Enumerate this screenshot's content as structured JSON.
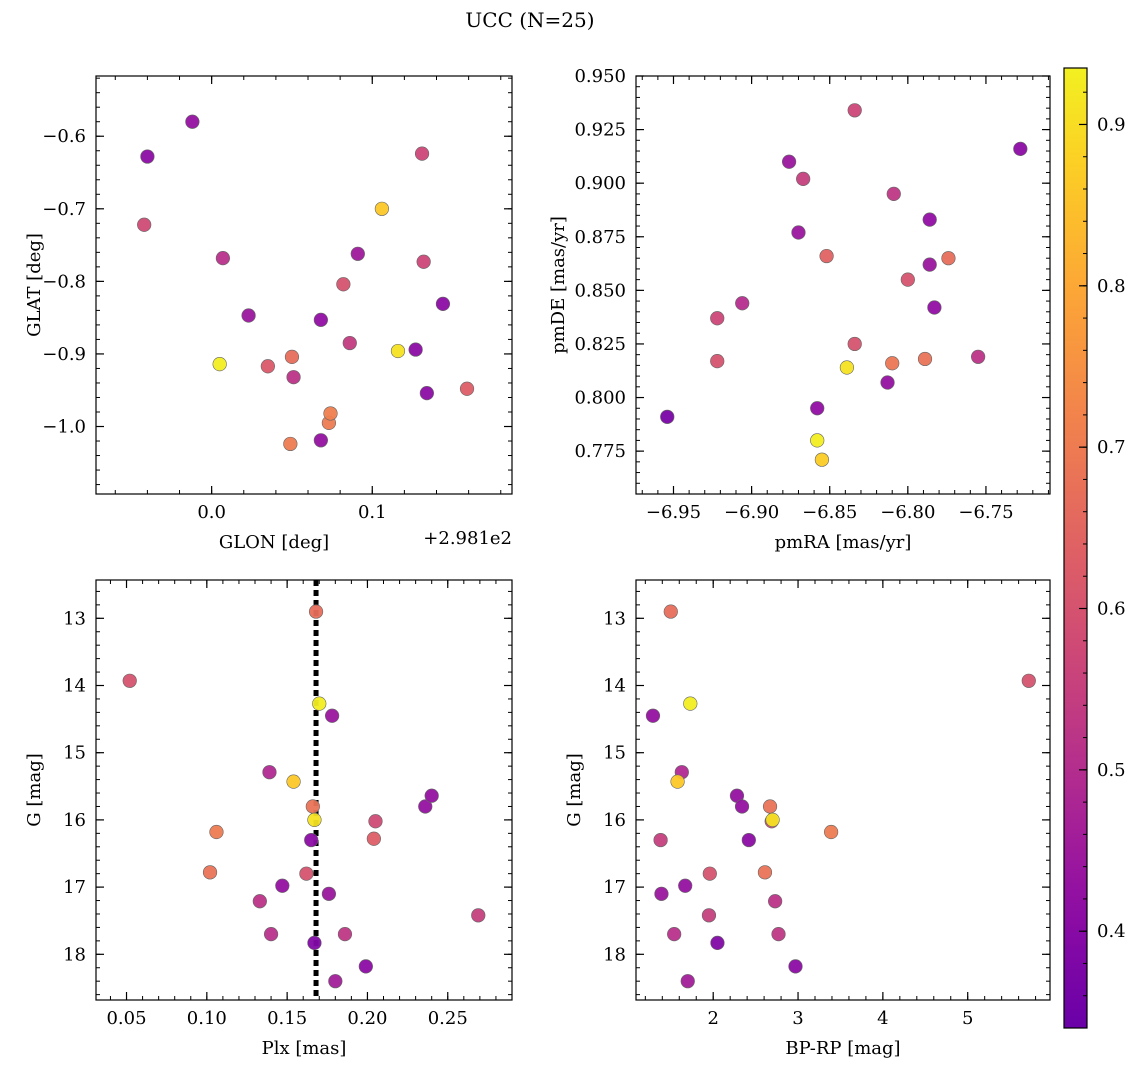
{
  "figure": {
    "title": "UCC (N=25)"
  },
  "colormap": {
    "name": "plasma",
    "ticks": [
      "0.4",
      "0.5",
      "0.6",
      "0.7",
      "0.8",
      "0.9"
    ],
    "tick_values": [
      0.4,
      0.5,
      0.6,
      0.7,
      0.8,
      0.9
    ],
    "range": [
      0.34,
      0.935
    ]
  },
  "chart_data": [
    {
      "type": "scatter",
      "xlabel": "GLON [deg]",
      "ylabel": "GLAT [deg]",
      "x_offset_label": "+2.981e2",
      "xlim": [
        -0.072,
        0.187
      ],
      "ylim": [
        -1.093,
        -0.517
      ],
      "xticks": [
        0.0,
        0.1
      ],
      "xtick_labels": [
        "0.0",
        "0.1"
      ],
      "yticks": [
        -0.6,
        -0.7,
        -0.8,
        -0.9,
        -1.0
      ],
      "ytick_labels": [
        "−0.6",
        "−0.7",
        "−0.8",
        "−0.9",
        "−1.0"
      ],
      "x_minor_step": 0.02,
      "y_minor_step": 0.02,
      "x": [
        -0.012,
        -0.04,
        -0.042,
        0.007,
        0.023,
        0.005,
        0.035,
        0.05,
        0.051,
        0.049,
        0.068,
        0.068,
        0.073,
        0.074,
        0.082,
        0.086,
        0.091,
        0.106,
        0.116,
        0.131,
        0.132,
        0.127,
        0.134,
        0.144,
        0.159
      ],
      "y": [
        -0.58,
        -0.628,
        -0.722,
        -0.768,
        -0.847,
        -0.914,
        -0.917,
        -0.904,
        -0.932,
        -1.024,
        -0.853,
        -1.019,
        -0.995,
        -0.982,
        -0.804,
        -0.885,
        -0.762,
        -0.7,
        -0.896,
        -0.624,
        -0.773,
        -0.894,
        -0.954,
        -0.831,
        -0.948
      ],
      "color_values": [
        0.43,
        0.41,
        0.58,
        0.51,
        0.44,
        0.93,
        0.62,
        0.67,
        0.52,
        0.7,
        0.42,
        0.43,
        0.7,
        0.71,
        0.6,
        0.54,
        0.45,
        0.86,
        0.91,
        0.57,
        0.57,
        0.41,
        0.41,
        0.41,
        0.63
      ]
    },
    {
      "type": "scatter",
      "xlabel": "pmRA [mas/yr]",
      "ylabel": "pmDE [mas/yr]",
      "xlim": [
        -6.974,
        -6.709
      ],
      "ylim": [
        0.755,
        0.95
      ],
      "xticks": [
        -6.95,
        -6.9,
        -6.85,
        -6.8,
        -6.75
      ],
      "xtick_labels": [
        "−6.95",
        "−6.90",
        "−6.85",
        "−6.80",
        "−6.75"
      ],
      "yticks": [
        0.775,
        0.8,
        0.825,
        0.85,
        0.875,
        0.9,
        0.925,
        0.95
      ],
      "ytick_labels": [
        "0.775",
        "0.800",
        "0.825",
        "0.850",
        "0.875",
        "0.900",
        "0.925",
        "0.950"
      ],
      "x_minor_step": 0.01,
      "y_minor_step": 0.005,
      "x": [
        -6.954,
        -6.922,
        -6.922,
        -6.906,
        -6.876,
        -6.87,
        -6.867,
        -6.858,
        -6.858,
        -6.855,
        -6.852,
        -6.839,
        -6.834,
        -6.834,
        -6.81,
        -6.813,
        -6.809,
        -6.8,
        -6.789,
        -6.786,
        -6.786,
        -6.783,
        -6.774,
        -6.755,
        -6.728
      ],
      "y": [
        0.791,
        0.837,
        0.817,
        0.844,
        0.91,
        0.877,
        0.902,
        0.795,
        0.78,
        0.771,
        0.866,
        0.814,
        0.934,
        0.825,
        0.816,
        0.807,
        0.895,
        0.855,
        0.818,
        0.862,
        0.883,
        0.842,
        0.865,
        0.819,
        0.916
      ],
      "color_values": [
        0.37,
        0.57,
        0.6,
        0.5,
        0.44,
        0.44,
        0.55,
        0.42,
        0.93,
        0.87,
        0.64,
        0.91,
        0.57,
        0.6,
        0.69,
        0.43,
        0.53,
        0.6,
        0.68,
        0.44,
        0.42,
        0.42,
        0.67,
        0.52,
        0.41
      ]
    },
    {
      "type": "scatter",
      "xlabel": "Plx [mas]",
      "ylabel": "G [mag]",
      "xlim": [
        0.031,
        0.29
      ],
      "ylim": [
        18.68,
        12.43
      ],
      "y_inverted": true,
      "xticks": [
        0.05,
        0.1,
        0.15,
        0.2,
        0.25
      ],
      "xtick_labels": [
        "0.05",
        "0.10",
        "0.15",
        "0.20",
        "0.25"
      ],
      "yticks": [
        13,
        14,
        15,
        16,
        17,
        18
      ],
      "ytick_labels": [
        "13",
        "14",
        "15",
        "16",
        "17",
        "18"
      ],
      "x_minor_step": 0.01,
      "y_minor_step": 0.2,
      "vline_x": 0.168,
      "x": [
        0.052,
        0.102,
        0.106,
        0.133,
        0.139,
        0.14,
        0.147,
        0.154,
        0.162,
        0.165,
        0.166,
        0.167,
        0.167,
        0.168,
        0.17,
        0.176,
        0.178,
        0.18,
        0.186,
        0.199,
        0.204,
        0.205,
        0.236,
        0.24,
        0.269
      ],
      "y": [
        13.93,
        16.78,
        16.18,
        17.21,
        15.29,
        17.7,
        16.98,
        15.43,
        16.8,
        16.3,
        15.8,
        17.83,
        16.0,
        12.9,
        14.27,
        17.1,
        14.45,
        18.4,
        17.7,
        18.18,
        16.28,
        16.02,
        15.8,
        15.64,
        17.42
      ],
      "color_values": [
        0.6,
        0.68,
        0.7,
        0.52,
        0.49,
        0.51,
        0.43,
        0.86,
        0.6,
        0.41,
        0.68,
        0.39,
        0.91,
        0.67,
        0.93,
        0.44,
        0.44,
        0.46,
        0.53,
        0.41,
        0.63,
        0.58,
        0.43,
        0.43,
        0.55
      ]
    },
    {
      "type": "scatter",
      "xlabel": "BP-RP [mag]",
      "ylabel": "G [mag]",
      "xlim": [
        1.09,
        5.97
      ],
      "ylim": [
        18.68,
        12.43
      ],
      "y_inverted": true,
      "xticks": [
        2,
        3,
        4,
        5
      ],
      "xtick_labels": [
        "2",
        "3",
        "4",
        "5"
      ],
      "yticks": [
        13,
        14,
        15,
        16,
        17,
        18
      ],
      "ytick_labels": [
        "13",
        "14",
        "15",
        "16",
        "17",
        "18"
      ],
      "x_minor_step": 0.2,
      "y_minor_step": 0.2,
      "x": [
        1.5,
        5.72,
        1.73,
        1.29,
        1.63,
        1.58,
        2.28,
        2.34,
        2.69,
        2.67,
        2.7,
        3.39,
        1.38,
        2.42,
        1.96,
        2.61,
        1.67,
        1.39,
        1.95,
        1.54,
        2.73,
        2.05,
        2.77,
        2.97,
        1.7
      ],
      "y": [
        12.9,
        13.93,
        14.27,
        14.45,
        15.29,
        15.43,
        15.64,
        15.8,
        16.02,
        15.8,
        16.0,
        16.18,
        16.3,
        16.3,
        16.8,
        16.78,
        16.98,
        17.1,
        17.42,
        17.7,
        17.21,
        17.83,
        17.7,
        18.18,
        18.4
      ],
      "color_values": [
        0.67,
        0.6,
        0.93,
        0.43,
        0.49,
        0.86,
        0.43,
        0.43,
        0.58,
        0.68,
        0.91,
        0.7,
        0.55,
        0.41,
        0.6,
        0.68,
        0.43,
        0.44,
        0.55,
        0.51,
        0.52,
        0.39,
        0.53,
        0.41,
        0.46
      ]
    }
  ]
}
